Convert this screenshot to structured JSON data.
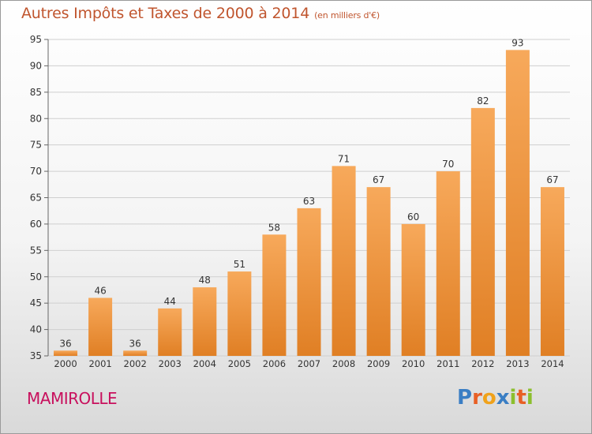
{
  "title": "Autres Impôts et Taxes de 2000 à 2014",
  "unit": "(en milliers d'€)",
  "town": "MAMIROLLE",
  "logo": [
    "P",
    "r",
    "o",
    "x",
    "i",
    "t",
    "i"
  ],
  "colors": {
    "bar_top": "#f7a95b",
    "bar_bottom": "#e07f24",
    "title": "#c0552e",
    "town": "#c8105d",
    "logo": [
      "#3a7ec4",
      "#e85f25",
      "#f0a21b",
      "#3a7ec4",
      "#8cbf2e",
      "#e85f25",
      "#8cbf2e"
    ]
  },
  "chart_data": {
    "type": "bar",
    "categories": [
      "2000",
      "2001",
      "2002",
      "2003",
      "2004",
      "2005",
      "2006",
      "2007",
      "2008",
      "2009",
      "2010",
      "2011",
      "2012",
      "2013",
      "2014"
    ],
    "values": [
      36,
      46,
      36,
      44,
      48,
      51,
      58,
      63,
      71,
      67,
      60,
      70,
      82,
      93,
      67
    ],
    "ylim": [
      35,
      95
    ],
    "yticks": [
      35,
      40,
      45,
      50,
      55,
      60,
      65,
      70,
      75,
      80,
      85,
      90,
      95
    ],
    "grid": true
  }
}
